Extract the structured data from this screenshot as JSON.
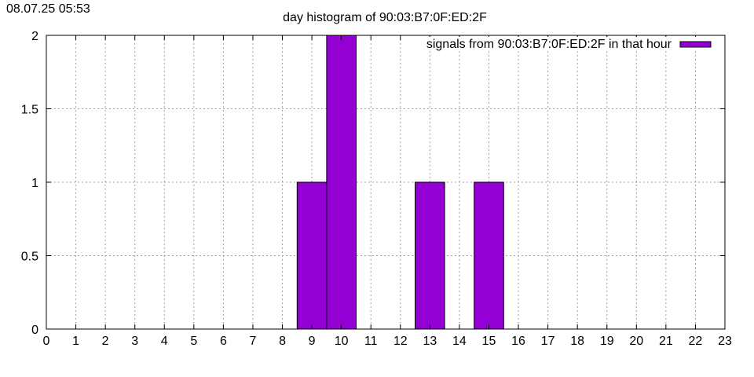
{
  "timestamp": "08.07.25 05:53",
  "colors": {
    "bar": "#9400d3",
    "grid": "#a0a0a0",
    "axis": "#000000"
  },
  "chart_data": {
    "type": "bar",
    "title": "day histogram of 90:03:B7:0F:ED:2F",
    "xlabel": "",
    "ylabel": "",
    "xlim": [
      0,
      23
    ],
    "ylim": [
      0,
      2
    ],
    "x_ticks": [
      "0",
      "1",
      "2",
      "3",
      "4",
      "5",
      "6",
      "7",
      "8",
      "9",
      "10",
      "11",
      "12",
      "13",
      "14",
      "15",
      "16",
      "17",
      "18",
      "19",
      "20",
      "21",
      "22",
      "23"
    ],
    "y_ticks": [
      "0",
      "0.5",
      "1",
      "1.5",
      "2"
    ],
    "grid": true,
    "legend_position": "top-right",
    "series": [
      {
        "name": "signals from 90:03:B7:0F:ED:2F in that hour",
        "bars": [
          {
            "hour": 9,
            "value": 1
          },
          {
            "hour": 10,
            "value": 2
          },
          {
            "hour": 13,
            "value": 1
          },
          {
            "hour": 15,
            "value": 1
          }
        ]
      }
    ]
  }
}
